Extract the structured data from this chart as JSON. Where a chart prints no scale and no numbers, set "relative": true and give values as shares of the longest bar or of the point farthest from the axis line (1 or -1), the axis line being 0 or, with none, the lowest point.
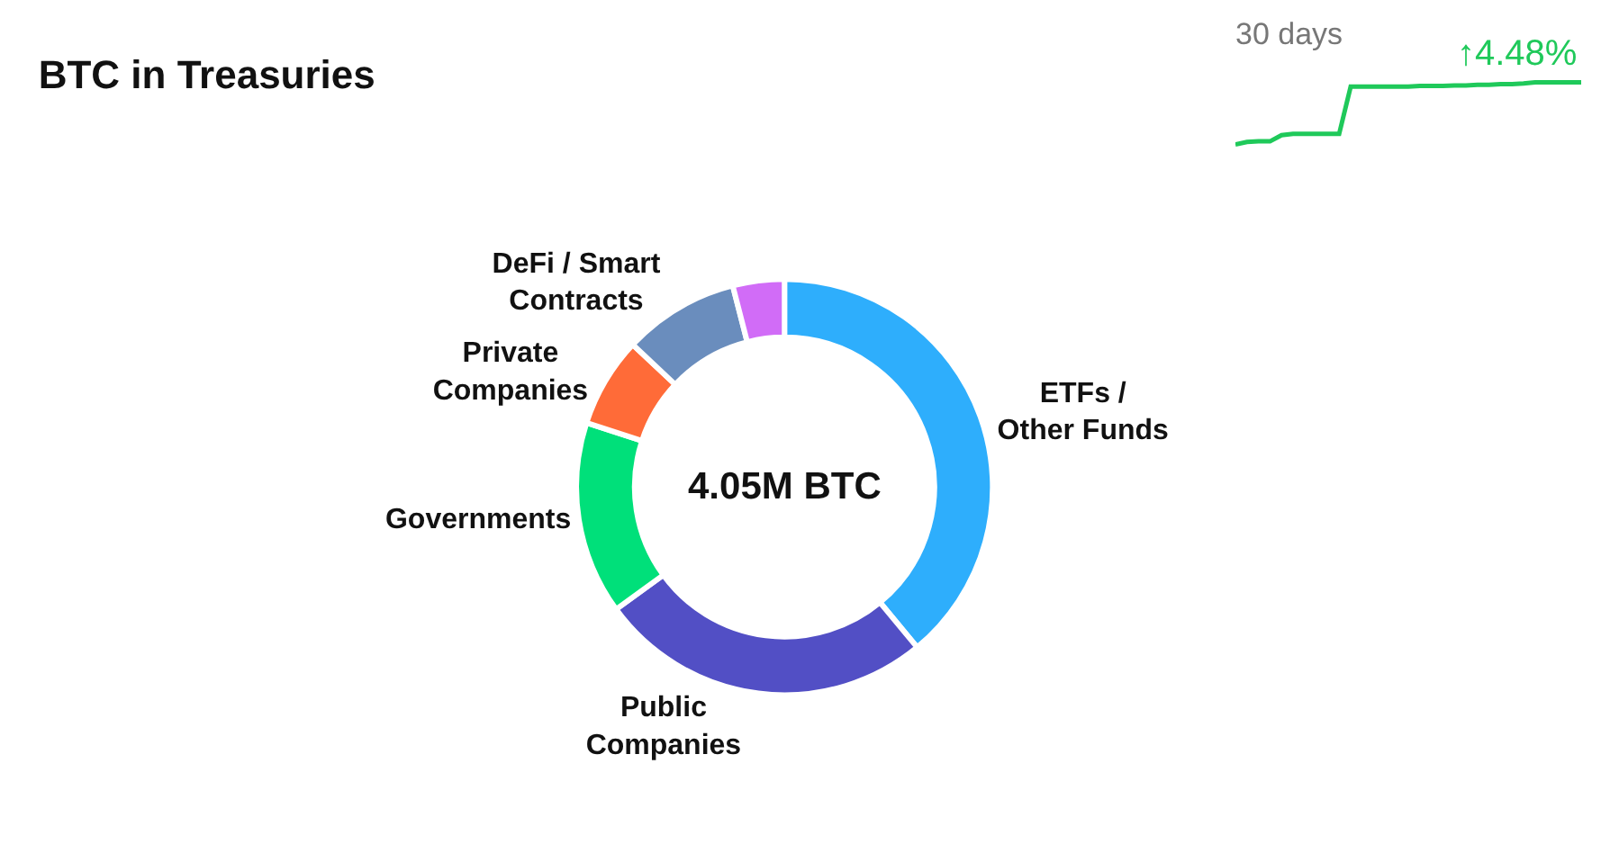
{
  "chart_data": [
    {
      "type": "donut",
      "title": "BTC in Treasuries",
      "categories": [
        "ETFs / Other Funds",
        "Public Companies",
        "Governments",
        "Private Companies",
        "DeFi / Smart Contracts",
        null
      ],
      "values": [
        39,
        26,
        15,
        7,
        9,
        4
      ],
      "colors": [
        "#2eaefc",
        "#524fc5",
        "#00e07a",
        "#ff6b38",
        "#6a8dbd",
        "#d16cf7"
      ],
      "annotations": [
        "4.05M BTC"
      ],
      "legend": false
    },
    {
      "type": "line",
      "title": "30 days",
      "relative": true,
      "categories": [
        null,
        null,
        null,
        null,
        null,
        null,
        null,
        null,
        null,
        null,
        null,
        null,
        null,
        null,
        null,
        null,
        null,
        null,
        null,
        null,
        null,
        null,
        null,
        null,
        null,
        null,
        null,
        null,
        null,
        null,
        null
      ],
      "series": [
        {
          "color": "#1fc95a",
          "values": [
            0,
            0.04,
            0.05,
            0.05,
            0.15,
            0.17,
            0.17,
            0.17,
            0.17,
            0.17,
            0.93,
            0.93,
            0.93,
            0.93,
            0.93,
            0.93,
            0.94,
            0.94,
            0.94,
            0.95,
            0.95,
            0.96,
            0.96,
            0.97,
            0.97,
            0.98,
            1,
            1,
            1,
            1,
            1
          ]
        }
      ],
      "annotations": [
        "↑4.48%"
      ],
      "marker": "none",
      "legend": false
    }
  ]
}
